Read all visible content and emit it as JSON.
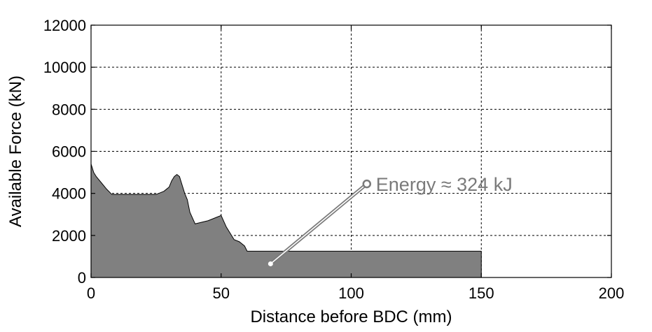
{
  "chart_data": {
    "type": "area",
    "title": "",
    "xlabel": "Distance before BDC (mm)",
    "ylabel": "Available Force (kN)",
    "xlim": [
      0,
      200
    ],
    "ylim": [
      0,
      12000
    ],
    "xticks": [
      0,
      50,
      100,
      150,
      200
    ],
    "yticks": [
      0,
      2000,
      4000,
      6000,
      8000,
      10000,
      12000
    ],
    "grid": true,
    "legend": "none",
    "colors": {
      "fill": "#808080",
      "outline": "#000000",
      "grid": "#000000",
      "annotation": "#7a7a7a"
    },
    "series": [
      {
        "x": [
          0,
          1,
          2,
          4,
          6,
          8,
          10,
          15,
          20,
          25,
          28,
          30,
          31,
          32,
          33,
          34,
          35,
          36,
          37,
          38,
          40,
          45,
          48,
          50,
          52,
          55,
          57,
          59,
          60,
          61,
          70,
          80,
          90,
          100,
          110,
          120,
          130,
          140,
          150
        ],
        "y": [
          5400,
          5000,
          4800,
          4500,
          4200,
          3950,
          3950,
          3950,
          3950,
          3950,
          4100,
          4300,
          4600,
          4800,
          4900,
          4800,
          4400,
          4000,
          3700,
          3100,
          2550,
          2700,
          2850,
          2950,
          2400,
          1800,
          1700,
          1500,
          1250,
          1250,
          1250,
          1250,
          1250,
          1250,
          1250,
          1250,
          1250,
          1250,
          1250
        ]
      }
    ],
    "annotation": {
      "text": "Energy ≈ 324 kJ",
      "point": [
        69,
        650
      ],
      "label_anchor": [
        106,
        4450
      ]
    }
  }
}
